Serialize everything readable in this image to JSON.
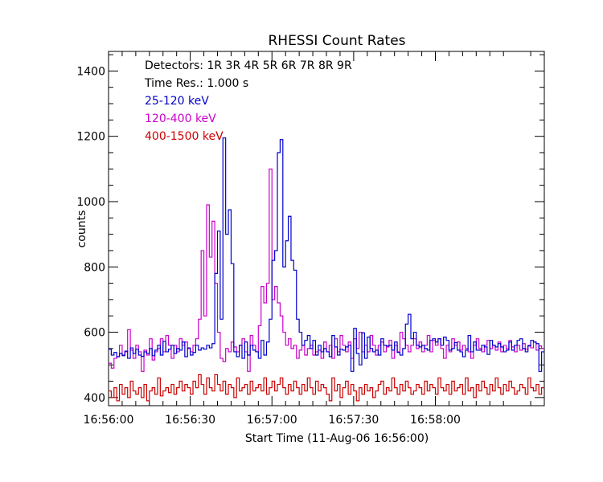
{
  "chart_data": {
    "type": "line",
    "title": "RHESSI Count Rates",
    "xlabel": "Start Time (11-Aug-06 16:56:00)",
    "ylabel": "counts",
    "ylim": [
      375,
      1460
    ],
    "xlim": [
      0,
      160
    ],
    "x_ticks": [
      {
        "value": 0,
        "label": "16:56:00"
      },
      {
        "value": 30,
        "label": "16:56:30"
      },
      {
        "value": 60,
        "label": "16:57:00"
      },
      {
        "value": 90,
        "label": "16:57:30"
      },
      {
        "value": 120,
        "label": "16:58:00"
      }
    ],
    "y_ticks": [
      400,
      600,
      800,
      1000,
      1200,
      1400
    ],
    "grid": false,
    "annotations": [
      {
        "text": "Detectors:  1R 3R 4R 5R 6R 7R 8R 9R",
        "color": "#000000"
      },
      {
        "text": "Time Res.: 1.000 s",
        "color": "#000000"
      }
    ],
    "legend_position": "top-left",
    "series": [
      {
        "name": "25-120 keV",
        "color": "#0000cc",
        "values": [
          548,
          530,
          538,
          525,
          535,
          528,
          542,
          520,
          552,
          535,
          548,
          530,
          526,
          540,
          535,
          550,
          528,
          545,
          560,
          530,
          572,
          540,
          548,
          560,
          535,
          550,
          545,
          570,
          525,
          552,
          530,
          538,
          560,
          545,
          552,
          548,
          560,
          552,
          565,
          780,
          910,
          640,
          1195,
          900,
          975,
          810,
          540,
          525,
          560,
          520,
          570,
          530,
          560,
          545,
          540,
          520,
          575,
          530,
          570,
          640,
          820,
          850,
          1150,
          1190,
          800,
          880,
          955,
          820,
          790,
          640,
          600,
          560,
          575,
          590,
          550,
          575,
          530,
          560,
          540,
          550,
          540,
          525,
          590,
          555,
          530,
          548,
          545,
          555,
          560,
          480,
          612,
          535,
          500,
          598,
          520,
          585,
          550,
          540,
          545,
          530,
          580,
          560,
          558,
          560,
          545,
          570,
          538,
          530,
          550,
          625,
          655,
          580,
          600,
          560,
          555,
          560,
          550,
          545,
          575,
          580,
          570,
          580,
          560,
          585,
          575,
          545,
          550,
          568,
          545,
          540,
          525,
          545,
          590,
          540,
          570,
          545,
          545,
          560,
          555,
          532,
          575,
          560,
          555,
          565,
          555,
          540,
          545,
          570,
          545,
          560,
          575,
          580,
          550,
          540,
          558,
          575,
          570,
          565,
          480,
          540
        ]
      },
      {
        "name": "120-400 keV",
        "color": "#cc00cc",
        "values": [
          505,
          490,
          520,
          525,
          560,
          530,
          540,
          608,
          545,
          520,
          560,
          540,
          480,
          545,
          530,
          580,
          515,
          540,
          550,
          580,
          540,
          590,
          560,
          520,
          560,
          540,
          580,
          560,
          570,
          550,
          540,
          560,
          580,
          640,
          850,
          650,
          990,
          830,
          940,
          750,
          600,
          520,
          510,
          550,
          540,
          570,
          555,
          540,
          560,
          580,
          540,
          480,
          590,
          560,
          540,
          620,
          740,
          690,
          750,
          1100,
          700,
          740,
          690,
          650,
          600,
          560,
          580,
          550,
          560,
          520,
          545,
          560,
          530,
          550,
          560,
          530,
          540,
          545,
          520,
          570,
          540,
          560,
          520,
          580,
          540,
          590,
          560,
          540,
          570,
          520,
          580,
          550,
          600,
          540,
          560,
          540,
          590,
          560,
          530,
          560,
          570,
          540,
          555,
          575,
          520,
          560,
          540,
          600,
          580,
          560,
          540,
          560,
          580,
          550,
          570,
          540,
          560,
          590,
          540,
          575,
          560,
          580,
          550,
          520,
          560,
          540,
          580,
          560,
          570,
          545,
          560,
          550,
          540,
          520,
          560,
          580,
          550,
          540,
          560,
          575,
          550,
          560,
          545,
          570,
          540,
          560,
          550,
          575,
          555,
          540,
          560,
          545,
          565,
          548,
          560,
          552,
          570,
          545,
          558,
          550
        ]
      },
      {
        "name": "400-1500 keV",
        "color": "#cc0000",
        "values": [
          420,
          400,
          430,
          390,
          440,
          410,
          430,
          400,
          450,
          420,
          410,
          430,
          400,
          440,
          390,
          420,
          430,
          410,
          460,
          405,
          420,
          430,
          415,
          440,
          410,
          430,
          450,
          420,
          440,
          430,
          410,
          450,
          430,
          470,
          440,
          410,
          460,
          430,
          420,
          470,
          440,
          420,
          450,
          410,
          440,
          430,
          400,
          460,
          420,
          430,
          440,
          410,
          450,
          420,
          430,
          440,
          420,
          460,
          410,
          430,
          450,
          420,
          440,
          460,
          430,
          410,
          440,
          420,
          450,
          430,
          410,
          440,
          420,
          460,
          430,
          410,
          450,
          420,
          440,
          430,
          410,
          390,
          460,
          420,
          440,
          400,
          430,
          450,
          410,
          440,
          420,
          390,
          430,
          410,
          440,
          420,
          430,
          400,
          420,
          440,
          450,
          410,
          430,
          420,
          460,
          430,
          410,
          440,
          420,
          450,
          430,
          410,
          420,
          440,
          430,
          410,
          450,
          420,
          440,
          430,
          410,
          460,
          430,
          420,
          440,
          410,
          450,
          420,
          430,
          440,
          410,
          460,
          420,
          430,
          400,
          440,
          420,
          450,
          430,
          410,
          440,
          420,
          460,
          430,
          410,
          440,
          420,
          450,
          430,
          410,
          420,
          440,
          430,
          410,
          460,
          430,
          420,
          440,
          410,
          430
        ]
      }
    ]
  }
}
